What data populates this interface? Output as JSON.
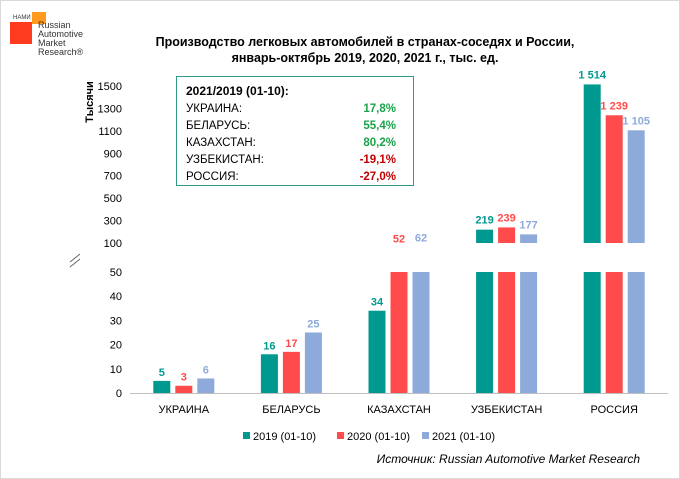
{
  "brand": {
    "nami": "НАМИ",
    "name_lines": [
      "Russian",
      "Automotive",
      "Market",
      "Research®"
    ]
  },
  "title_line1": "Производство легковых автомобилей в странах-соседях и России,",
  "title_line2": "январь-октябрь 2019, 2020, 2021 г., тыс. ед.",
  "source": "Источник: Russian Automotive Market Research",
  "infobox": {
    "header": "2021/2019 (01-10):",
    "rows": [
      {
        "country": "УКРАИНА:",
        "value": "17,8%",
        "sign": "pos"
      },
      {
        "country": "БЕЛАРУСЬ:",
        "value": "55,4%",
        "sign": "pos"
      },
      {
        "country": "КАЗАХСТАН:",
        "value": "80,2%",
        "sign": "pos"
      },
      {
        "country": "УЗБЕКИСТАН:",
        "value": "-19,1%",
        "sign": "neg"
      },
      {
        "country": "РОССИЯ:",
        "value": "-27,0%",
        "sign": "neg"
      }
    ]
  },
  "chart_data": {
    "type": "bar",
    "title": "Производство легковых автомобилей в странах-соседях и России, январь-октябрь 2019, 2020, 2021 г., тыс. ед.",
    "ylabel": "Тысячи",
    "xlabel": "",
    "categories": [
      "УКРАИНА",
      "БЕЛАРУСЬ",
      "КАЗАХСТАН",
      "УЗБЕКИСТАН",
      "РОССИЯ"
    ],
    "series": [
      {
        "name": "2019 (01-10)",
        "color": "#00998f",
        "values": [
          5,
          16,
          34,
          219,
          1514
        ],
        "labels": [
          "5",
          "16",
          "34",
          "219",
          "1 514"
        ]
      },
      {
        "name": "2020 (01-10)",
        "color": "#ff4b4b",
        "values": [
          3,
          17,
          52,
          239,
          1239
        ],
        "labels": [
          "3",
          "17",
          "52",
          "239",
          "1 239"
        ]
      },
      {
        "name": "2021 (01-10)",
        "color": "#8eaadb",
        "values": [
          6,
          25,
          62,
          177,
          1105
        ],
        "labels": [
          "6",
          "25",
          "62",
          "177",
          "1 105"
        ]
      }
    ],
    "axis_break": true,
    "lower_axis": {
      "range": [
        0,
        50
      ],
      "ticks": [
        0,
        10,
        20,
        30,
        40,
        50
      ]
    },
    "upper_axis": {
      "range": [
        100,
        1500
      ],
      "ticks": [
        100,
        300,
        500,
        700,
        900,
        1100,
        1300,
        1500
      ]
    },
    "legend_position": "bottom"
  }
}
